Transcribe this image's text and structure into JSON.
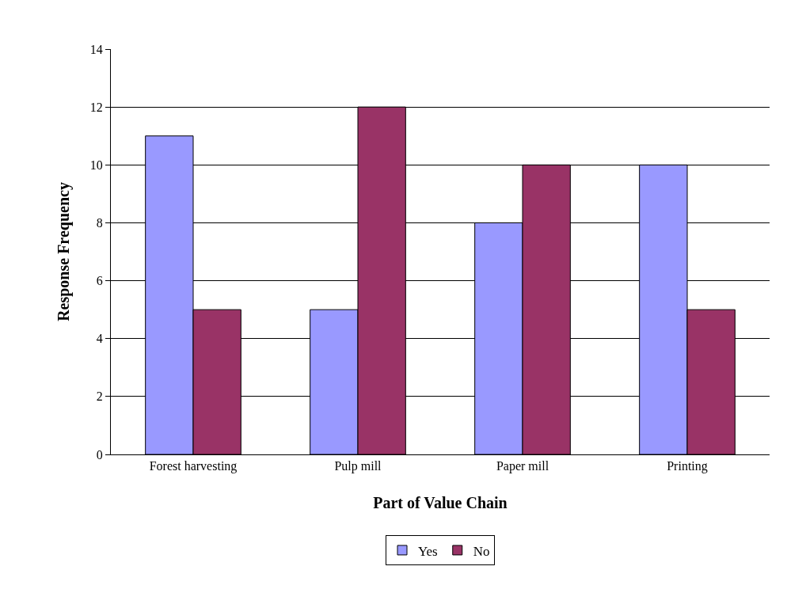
{
  "chart_data": {
    "type": "bar",
    "xlabel": "Part of Value Chain",
    "ylabel": "Response Frequency",
    "categories": [
      "Forest harvesting",
      "Pulp mill",
      "Paper mill",
      "Printing"
    ],
    "series": [
      {
        "name": "Yes",
        "color": "#9999ff",
        "values": [
          11,
          5,
          8,
          10
        ]
      },
      {
        "name": "No",
        "color": "#993366",
        "values": [
          5,
          12,
          10,
          5
        ]
      }
    ],
    "ylim": [
      0,
      14
    ],
    "yticks": [
      0,
      2,
      4,
      6,
      8,
      10,
      12,
      14
    ],
    "grid": "y",
    "legend": "bottom"
  }
}
